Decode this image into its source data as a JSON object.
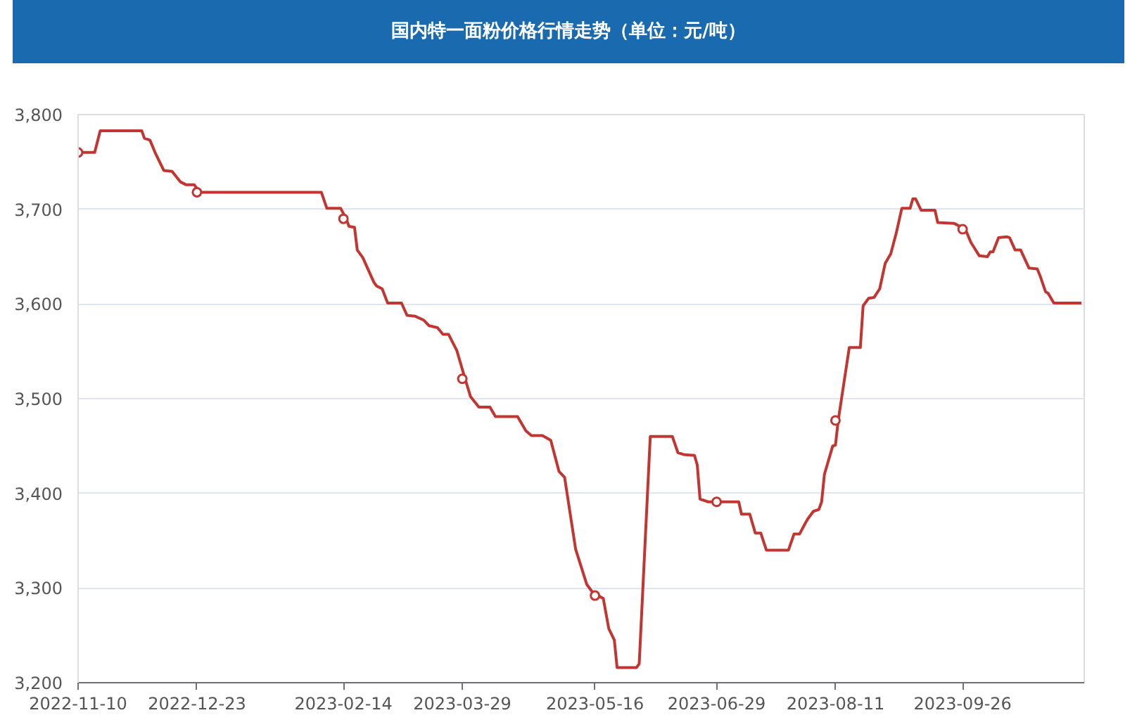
{
  "chart_data": {
    "type": "line",
    "title": "国内特一面粉价格行情走势（单位：元/吨）",
    "xlim": [
      "2022-11-10",
      "2023-11-09"
    ],
    "xticks": [
      "2022-11-10",
      "2022-12-23",
      "2023-02-14",
      "2023-03-29",
      "2023-05-16",
      "2023-06-29",
      "2023-08-11",
      "2023-09-26"
    ],
    "ylim": [
      3200,
      3800
    ],
    "yticks": [
      {
        "value": 3200,
        "label": "3,200"
      },
      {
        "value": 3300,
        "label": "3,300"
      },
      {
        "value": 3400,
        "label": "3,400"
      },
      {
        "value": 3500,
        "label": "3,500"
      },
      {
        "value": 3600,
        "label": "3,600"
      },
      {
        "value": 3700,
        "label": "3,700"
      },
      {
        "value": 3800,
        "label": "3,800"
      }
    ],
    "grid": "y",
    "series": [
      {
        "color": "#c23531",
        "x": [
          "2022-11-10",
          "2022-11-16",
          "2022-11-18",
          "2022-12-03",
          "2022-12-04",
          "2022-12-06",
          "2022-12-08",
          "2022-12-11",
          "2022-12-14",
          "2022-12-17",
          "2022-12-19",
          "2022-12-22",
          "2022-12-24",
          "2023-02-06",
          "2023-02-08",
          "2023-02-13",
          "2023-02-15",
          "2023-02-16",
          "2023-02-18",
          "2023-02-19",
          "2023-02-21",
          "2023-02-25",
          "2023-02-26",
          "2023-02-28",
          "2023-03-02",
          "2023-03-07",
          "2023-03-09",
          "2023-03-12",
          "2023-03-15",
          "2023-03-17",
          "2023-03-20",
          "2023-03-22",
          "2023-03-24",
          "2023-03-27",
          "2023-03-30",
          "2023-04-01",
          "2023-04-04",
          "2023-04-08",
          "2023-04-10",
          "2023-04-18",
          "2023-04-21",
          "2023-04-23",
          "2023-04-27",
          "2023-04-30",
          "2023-05-03",
          "2023-05-05",
          "2023-05-09",
          "2023-05-13",
          "2023-05-15",
          "2023-05-17",
          "2023-05-19",
          "2023-05-21",
          "2023-05-23",
          "2023-05-24",
          "2023-05-31",
          "2023-06-01",
          "2023-06-05",
          "2023-06-13",
          "2023-06-15",
          "2023-06-17",
          "2023-06-21",
          "2023-06-22",
          "2023-06-23",
          "2023-06-26",
          "2023-06-30",
          "2023-07-07",
          "2023-07-08",
          "2023-07-11",
          "2023-07-13",
          "2023-07-15",
          "2023-07-17",
          "2023-07-25",
          "2023-07-27",
          "2023-07-29",
          "2023-07-31",
          "2023-08-01",
          "2023-08-03",
          "2023-08-05",
          "2023-08-06",
          "2023-08-07",
          "2023-08-08",
          "2023-08-10",
          "2023-08-11",
          "2023-08-12",
          "2023-08-16",
          "2023-08-20",
          "2023-08-21",
          "2023-08-23",
          "2023-08-25",
          "2023-08-27",
          "2023-08-29",
          "2023-08-31",
          "2023-09-02",
          "2023-09-04",
          "2023-09-07",
          "2023-09-08",
          "2023-09-09",
          "2023-09-11",
          "2023-09-16",
          "2023-09-17",
          "2023-09-23",
          "2023-09-27",
          "2023-09-29",
          "2023-10-02",
          "2023-10-05",
          "2023-10-06",
          "2023-10-07",
          "2023-10-09",
          "2023-10-12",
          "2023-10-13",
          "2023-10-15",
          "2023-10-17",
          "2023-10-20",
          "2023-10-23",
          "2023-10-24",
          "2023-10-26",
          "2023-10-27",
          "2023-10-29",
          "2023-11-08"
        ],
        "values": [
          3760,
          3760,
          3783,
          3783,
          3775,
          3773,
          3759,
          3741,
          3740,
          3729,
          3726,
          3726,
          3718,
          3718,
          3701,
          3701,
          3690,
          3682,
          3681,
          3657,
          3649,
          3623,
          3619,
          3616,
          3601,
          3601,
          3588,
          3587,
          3583,
          3577,
          3575,
          3568,
          3568,
          3551,
          3521,
          3502,
          3491,
          3491,
          3481,
          3481,
          3466,
          3461,
          3461,
          3456,
          3423,
          3417,
          3341,
          3304,
          3296,
          3292,
          3289,
          3257,
          3245,
          3216,
          3216,
          3220,
          3460,
          3460,
          3443,
          3441,
          3440,
          3430,
          3394,
          3391,
          3391,
          3391,
          3378,
          3378,
          3358,
          3358,
          3340,
          3340,
          3357,
          3357,
          3368,
          3373,
          3381,
          3383,
          3391,
          3420,
          3430,
          3450,
          3451,
          3477,
          3554,
          3554,
          3598,
          3606,
          3607,
          3616,
          3643,
          3653,
          3675,
          3701,
          3701,
          3711,
          3711,
          3699,
          3699,
          3686,
          3685,
          3679,
          3665,
          3651,
          3650,
          3655,
          3655,
          3670,
          3671,
          3670,
          3657,
          3657,
          3638,
          3637,
          3630,
          3613,
          3611,
          3601,
          3601
        ]
      },
      {
        "type": "scatter",
        "color": "#c23531",
        "marker": "circle",
        "x": [
          "2022-11-10",
          "2022-12-23",
          "2023-02-14",
          "2023-03-29",
          "2023-05-16",
          "2023-06-29",
          "2023-08-11",
          "2023-09-26"
        ],
        "values": [
          3760,
          3718,
          3690,
          3521,
          3292,
          3391,
          3477,
          3679
        ]
      }
    ]
  }
}
